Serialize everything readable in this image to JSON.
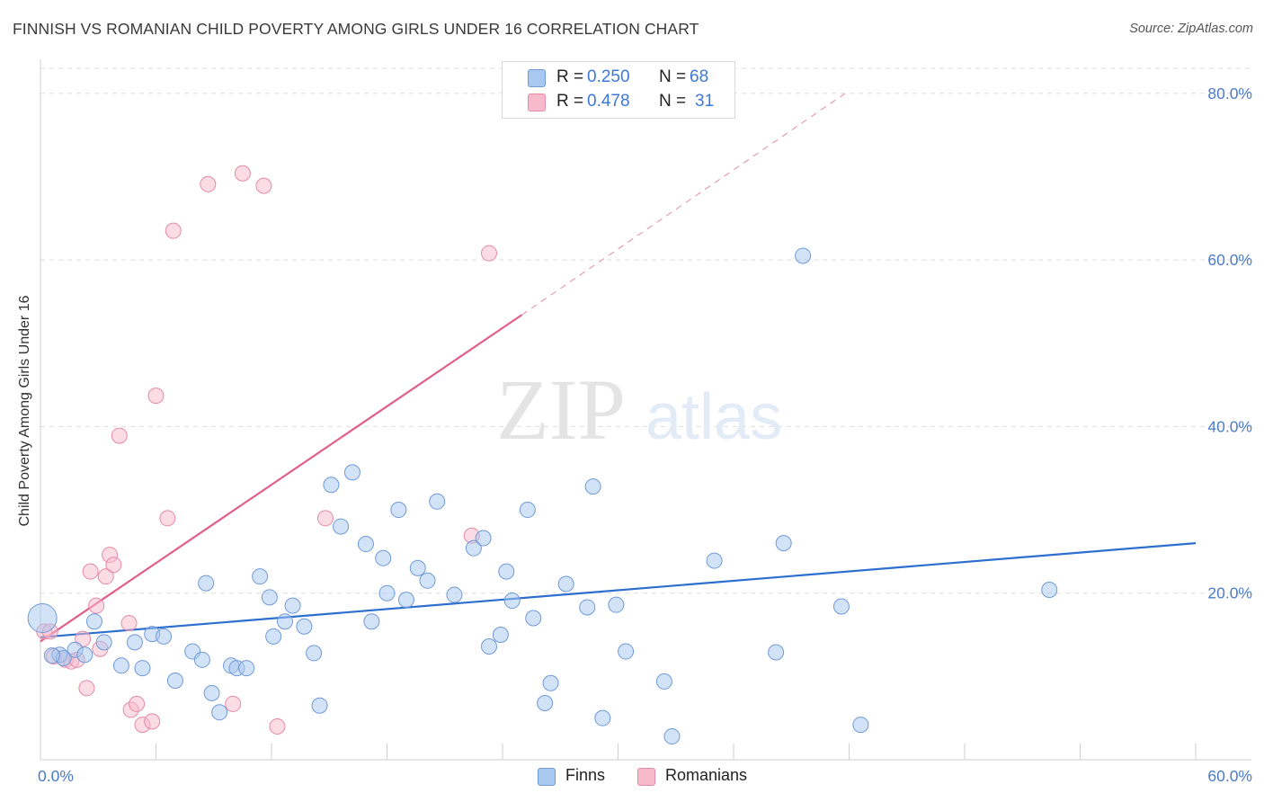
{
  "title": "FINNISH VS ROMANIAN CHILD POVERTY AMONG GIRLS UNDER 16 CORRELATION CHART",
  "source": "Source: ZipAtlas.com",
  "colors": {
    "finns_fill": "#a8c8f0",
    "finns_stroke": "#6f9ad8",
    "finns_line": "#2c6fcf",
    "romanians_fill": "#f7b9cc",
    "romanians_stroke": "#e48aa8",
    "romanians_line": "#e0608a",
    "tick_text": "#4a7cc7",
    "grid": "#dddddd"
  },
  "legend": {
    "r_label": "R =",
    "n_label": "N =",
    "finns_r": "0.250",
    "finns_n": "68",
    "romanians_r": "0.478",
    "romanians_n": "31"
  },
  "chart_data": {
    "type": "scatter",
    "title": "FINNISH VS ROMANIAN CHILD POVERTY AMONG GIRLS UNDER 16 CORRELATION CHART",
    "xlabel": "",
    "ylabel": "Child Poverty Among Girls Under 16",
    "xlim": [
      0,
      60
    ],
    "ylim": [
      0,
      83
    ],
    "x_tick_labels": [
      "0.0%",
      "60.0%"
    ],
    "y_ticks": [
      20,
      40,
      60,
      80
    ],
    "y_tick_labels": [
      "20.0%",
      "40.0%",
      "60.0%",
      "80.0%"
    ],
    "grid": true,
    "legend_position": "top-center",
    "watermark": "ZIPatlas",
    "series": [
      {
        "name": "Finns",
        "R": 0.25,
        "N": 68,
        "trend": {
          "x": [
            0,
            60
          ],
          "y": [
            14.7,
            26.0
          ]
        },
        "points": [
          [
            0.1,
            17.0
          ],
          [
            1.0,
            12.6
          ],
          [
            1.2,
            12.2
          ],
          [
            1.8,
            13.2
          ],
          [
            2.3,
            12.6
          ],
          [
            2.8,
            16.6
          ],
          [
            3.3,
            14.1
          ],
          [
            4.2,
            11.3
          ],
          [
            4.9,
            14.1
          ],
          [
            5.3,
            11.0
          ],
          [
            5.8,
            15.1
          ],
          [
            6.4,
            14.8
          ],
          [
            7.0,
            9.5
          ],
          [
            7.9,
            13.0
          ],
          [
            8.4,
            12.0
          ],
          [
            8.6,
            21.2
          ],
          [
            8.9,
            8.0
          ],
          [
            9.3,
            5.7
          ],
          [
            9.9,
            11.3
          ],
          [
            10.2,
            11.0
          ],
          [
            10.7,
            11.0
          ],
          [
            11.4,
            22.0
          ],
          [
            11.9,
            19.5
          ],
          [
            12.1,
            14.8
          ],
          [
            12.7,
            16.6
          ],
          [
            13.1,
            18.5
          ],
          [
            13.7,
            16.0
          ],
          [
            14.2,
            12.8
          ],
          [
            14.5,
            6.5
          ],
          [
            15.1,
            33.0
          ],
          [
            15.6,
            28.0
          ],
          [
            16.2,
            34.5
          ],
          [
            16.9,
            25.9
          ],
          [
            17.2,
            16.6
          ],
          [
            17.8,
            24.2
          ],
          [
            18.0,
            20.0
          ],
          [
            18.6,
            30.0
          ],
          [
            19.0,
            19.2
          ],
          [
            19.6,
            23.0
          ],
          [
            20.1,
            21.5
          ],
          [
            20.6,
            31.0
          ],
          [
            21.5,
            19.8
          ],
          [
            22.5,
            25.4
          ],
          [
            23.0,
            26.6
          ],
          [
            23.3,
            13.6
          ],
          [
            23.9,
            15.0
          ],
          [
            24.2,
            22.6
          ],
          [
            24.5,
            19.1
          ],
          [
            25.3,
            30.0
          ],
          [
            25.6,
            17.0
          ],
          [
            26.2,
            6.8
          ],
          [
            26.5,
            9.2
          ],
          [
            27.3,
            21.1
          ],
          [
            28.4,
            18.3
          ],
          [
            28.7,
            32.8
          ],
          [
            29.2,
            5.0
          ],
          [
            29.9,
            18.6
          ],
          [
            30.4,
            13.0
          ],
          [
            32.4,
            9.4
          ],
          [
            32.8,
            2.8
          ],
          [
            35.0,
            23.9
          ],
          [
            38.2,
            12.9
          ],
          [
            38.6,
            26.0
          ],
          [
            39.6,
            60.5
          ],
          [
            41.6,
            18.4
          ],
          [
            42.6,
            4.2
          ],
          [
            52.4,
            20.4
          ],
          [
            0.6,
            12.5
          ]
        ]
      },
      {
        "name": "Romanians",
        "R": 0.478,
        "N": 31,
        "trend": {
          "x": [
            0,
            25.0
          ],
          "y": [
            14.2,
            53.4
          ]
        },
        "trend_dashed": {
          "x": [
            25.0,
            41.8
          ],
          "y": [
            53.4,
            80.0
          ]
        },
        "points": [
          [
            0.2,
            15.4
          ],
          [
            0.5,
            15.4
          ],
          [
            0.7,
            12.4
          ],
          [
            1.3,
            12.0
          ],
          [
            1.6,
            11.8
          ],
          [
            1.9,
            12.0
          ],
          [
            2.2,
            14.5
          ],
          [
            2.4,
            8.6
          ],
          [
            2.6,
            22.6
          ],
          [
            2.9,
            18.5
          ],
          [
            3.1,
            13.3
          ],
          [
            3.4,
            22.0
          ],
          [
            3.6,
            24.6
          ],
          [
            3.8,
            23.4
          ],
          [
            4.1,
            38.9
          ],
          [
            4.6,
            16.4
          ],
          [
            4.7,
            6.0
          ],
          [
            5.0,
            6.7
          ],
          [
            5.3,
            4.2
          ],
          [
            5.8,
            4.6
          ],
          [
            6.0,
            43.7
          ],
          [
            6.6,
            29.0
          ],
          [
            6.9,
            63.5
          ],
          [
            8.7,
            69.1
          ],
          [
            10.0,
            6.7
          ],
          [
            10.5,
            70.4
          ],
          [
            11.6,
            68.9
          ],
          [
            12.3,
            4.0
          ],
          [
            14.8,
            29.0
          ],
          [
            22.4,
            26.9
          ],
          [
            23.3,
            60.8
          ]
        ]
      }
    ]
  },
  "bottom_legend": {
    "finns": "Finns",
    "romanians": "Romanians"
  }
}
